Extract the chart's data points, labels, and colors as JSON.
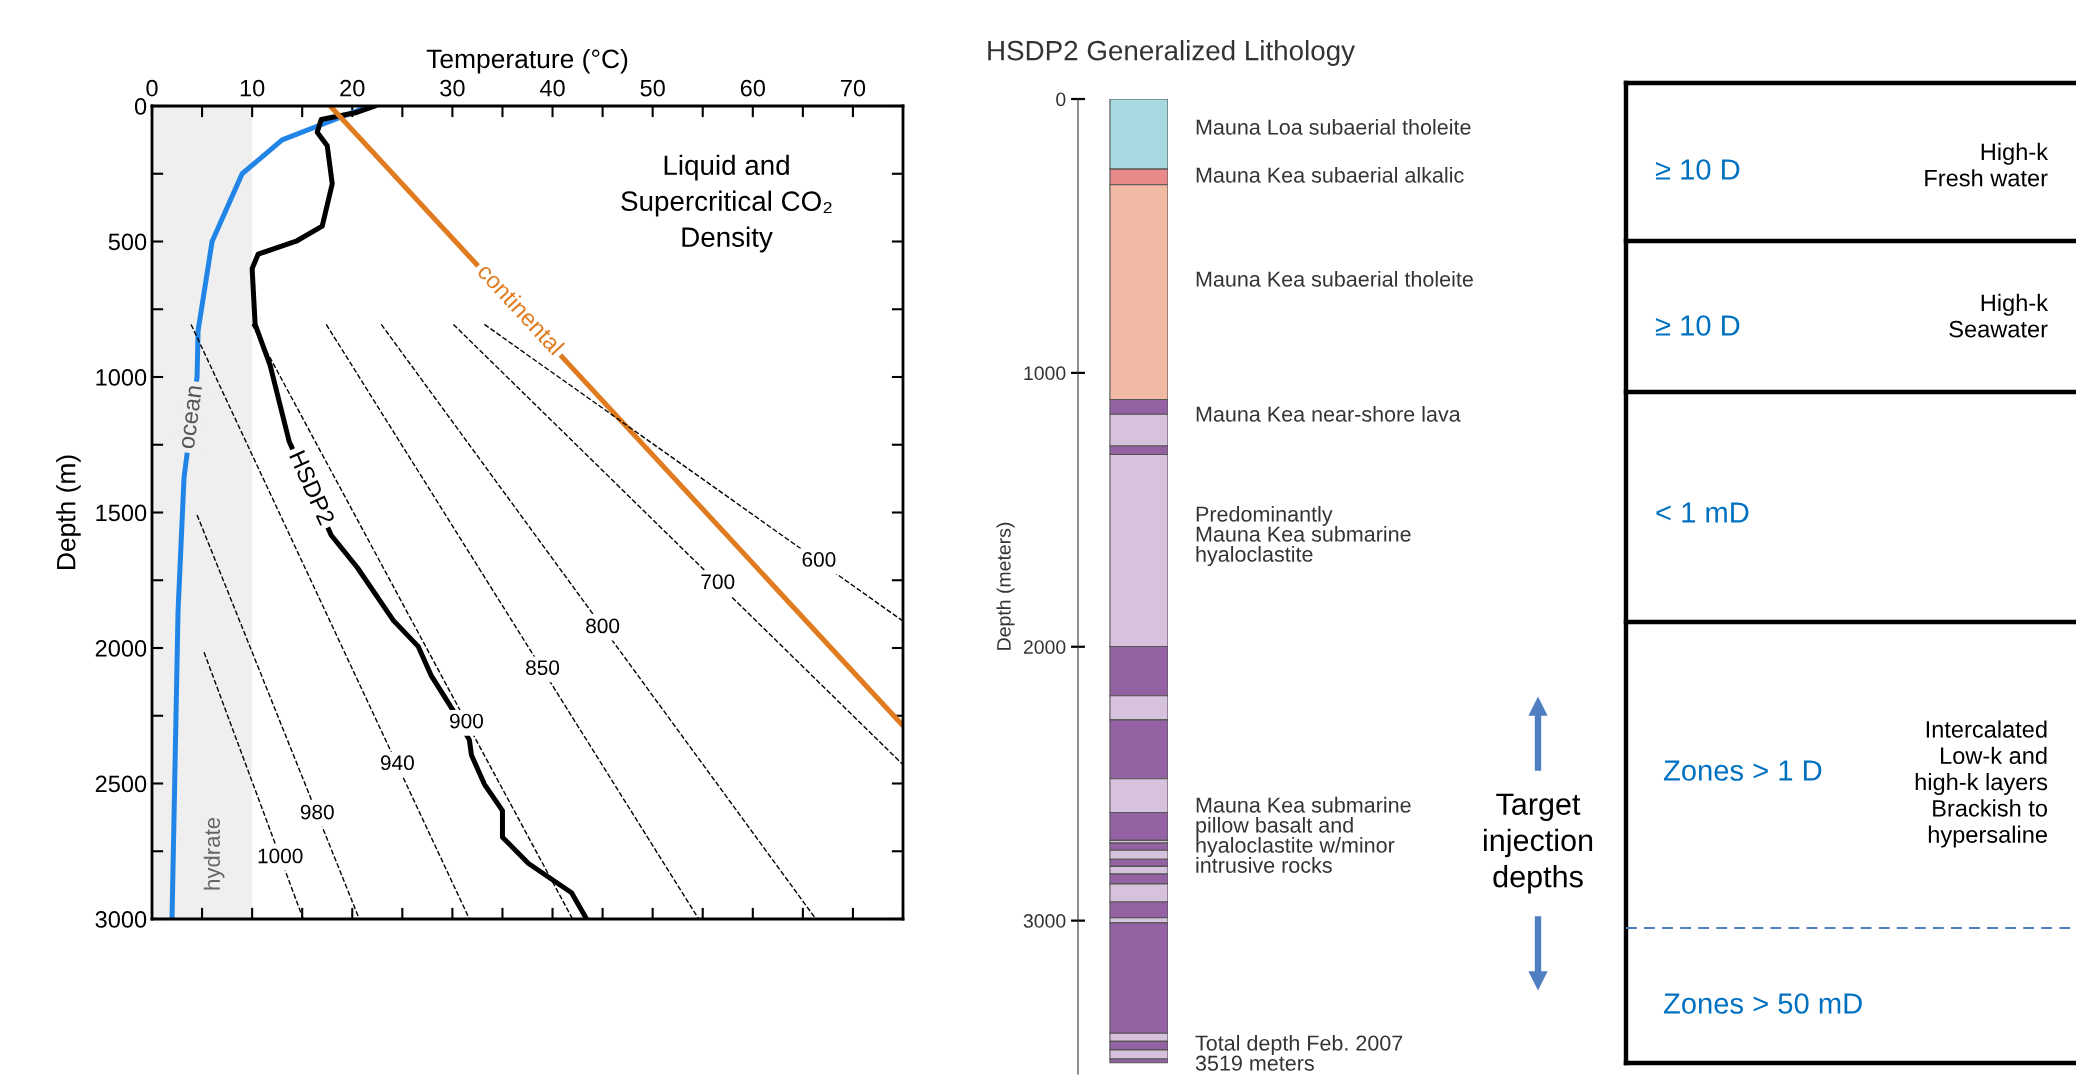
{
  "chart_data": [
    {
      "type": "line",
      "title": "Liquid and\nSupercritical CO₂\nDensity",
      "xlabel": "Temperature (°C)",
      "ylabel": "Depth (m)",
      "xlim": [
        0,
        75
      ],
      "ylim": [
        3000,
        0
      ],
      "xticks": [
        0,
        {
          "value": 5,
          "label": null
        },
        10,
        {
          "value": 15,
          "label": null
        },
        20,
        {
          "value": 25,
          "label": null
        },
        30,
        {
          "value": 35,
          "label": null
        },
        40,
        {
          "value": 45,
          "label": null
        },
        50,
        {
          "value": 55,
          "label": null
        },
        60,
        {
          "value": 65,
          "label": null
        },
        70,
        {
          "value": 75,
          "label": null
        }
      ],
      "yticks": [
        0,
        {
          "value": 250,
          "label": null
        },
        500,
        {
          "value": 750,
          "label": null
        },
        1000,
        {
          "value": 1250,
          "label": null
        },
        1500,
        {
          "value": 1750,
          "label": null
        },
        2000,
        {
          "value": 2250,
          "label": null
        },
        2500,
        {
          "value": 2750,
          "label": null
        },
        3000
      ],
      "bands": [
        {
          "axis": "x",
          "from": 0,
          "to": 10,
          "label": "hydrate",
          "color": "#efefef"
        }
      ],
      "series": [
        {
          "name": "ocean",
          "color": "#2185e8",
          "line_style": "solid",
          "x": [
            21,
            13,
            9,
            6,
            4.6,
            4.5,
            3.2,
            2.6,
            2
          ],
          "values": [
            10,
            125,
            250,
            500,
            830,
            1000,
            1370,
            1865,
            3000
          ]
        },
        {
          "name": "HSDP2",
          "color": "#000000",
          "line_style": "solid",
          "x": [
            22.3,
            20.3,
            16.9,
            16.5,
            17.5,
            18,
            17,
            14.4,
            10.6,
            10,
            10.3,
            11.8,
            13.7,
            17.9,
            20.5,
            24.1,
            26.6,
            27.9,
            30.1,
            31.7,
            31.9,
            33.2,
            35,
            35,
            37.6,
            41.9,
            43.4
          ],
          "values": [
            0,
            25,
            50,
            97,
            147,
            287,
            443,
            499,
            547,
            600,
            806,
            957,
            1238,
            1584,
            1703,
            1898,
            1995,
            2103,
            2232,
            2340,
            2395,
            2503,
            2600,
            2698,
            2795,
            2903,
            3000
          ]
        },
        {
          "name": "continental",
          "color": "#e07b1f",
          "line_style": "solid",
          "x": [
            17.8,
            75
          ],
          "values": [
            0,
            2287
          ]
        },
        {
          "color": "#000000",
          "line_style": "dashed",
          "x": [
            33.2,
            74.9
          ],
          "values": [
            806,
            1898
          ]
        },
        {
          "color": "#000000",
          "line_style": "dashed",
          "x": [
            30.1,
            74.9
          ],
          "values": [
            806,
            2427
          ]
        },
        {
          "color": "#000000",
          "line_style": "dashed",
          "x": [
            22.9,
            66.3
          ],
          "values": [
            806,
            3000
          ]
        },
        {
          "color": "#000000",
          "line_style": "dashed",
          "x": [
            17.4,
            54.6
          ],
          "values": [
            806,
            3000
          ]
        },
        {
          "color": "#000000",
          "line_style": "dashed",
          "x": [
            10,
            42
          ],
          "values": [
            806,
            3000
          ]
        },
        {
          "color": "#000000",
          "line_style": "dashed",
          "x": [
            3.9,
            31.7
          ],
          "values": [
            806,
            3000
          ]
        },
        {
          "color": "#000000",
          "line_style": "dashed",
          "x": [
            4.5,
            20.7
          ],
          "values": [
            1509,
            3000
          ]
        },
        {
          "color": "#000000",
          "line_style": "dashed",
          "x": [
            5.2,
            15.1
          ],
          "values": [
            2016,
            3000
          ]
        }
      ],
      "annotations": [
        {
          "text": "600",
          "x": 66.6,
          "y": 1680
        },
        {
          "text": "700",
          "x": 56.5,
          "y": 1762
        },
        {
          "text": "800",
          "x": 45,
          "y": 1925
        },
        {
          "text": "850",
          "x": 39,
          "y": 2079
        },
        {
          "text": "900",
          "x": 31.4,
          "y": 2276
        },
        {
          "text": "940",
          "x": 24.5,
          "y": 2430
        },
        {
          "text": "980",
          "x": 16.5,
          "y": 2612
        },
        {
          "text": "1000",
          "x": 12.8,
          "y": 2774
        }
      ]
    },
    {
      "type": "bar",
      "stacked": true,
      "title": "HSDP2 Generalized Lithology",
      "ylabel": "Depth (meters)",
      "categories": [
        null
      ],
      "tick_labels": "y",
      "ylim": [
        3560,
        0
      ],
      "yticks": [
        0,
        1000,
        2000,
        3000
      ],
      "series": [
        {
          "color": "#a8d8e0",
          "values": [
            256
          ]
        },
        {
          "color": "#e8898a",
          "values": [
            57
          ]
        },
        {
          "color": "#f2b9a4",
          "values": [
            784
          ]
        },
        {
          "color": "#9461a3",
          "values": [
            54
          ]
        },
        {
          "color": "#d7c2dd",
          "values": [
            116
          ]
        },
        {
          "color": "#9461a3",
          "values": [
            31
          ]
        },
        {
          "color": "#d7c2dd",
          "values": [
            701
          ]
        },
        {
          "color": "#9461a3",
          "values": [
            180
          ]
        },
        {
          "color": "#d7c2dd",
          "values": [
            88
          ]
        },
        {
          "color": "#9461a3",
          "values": [
            215
          ]
        },
        {
          "color": "#d7c2dd",
          "values": [
            123
          ]
        },
        {
          "color": "#9461a3",
          "values": [
            102
          ]
        },
        {
          "color": "#d7c2dd",
          "values": [
            10
          ]
        },
        {
          "color": "#9461a3",
          "values": [
            26
          ]
        },
        {
          "color": "#d7c2dd",
          "values": [
            33
          ]
        },
        {
          "color": "#9461a3",
          "values": [
            26
          ]
        },
        {
          "color": "#d7c2dd",
          "values": [
            28
          ]
        },
        {
          "color": "#9461a3",
          "values": [
            36
          ]
        },
        {
          "color": "#d7c2dd",
          "values": [
            66
          ]
        },
        {
          "color": "#9461a3",
          "values": [
            57
          ]
        },
        {
          "color": "#d7c2dd",
          "values": [
            19
          ]
        },
        {
          "color": "#9461a3",
          "values": [
            403
          ]
        },
        {
          "color": "#d7c2dd",
          "values": [
            30
          ]
        },
        {
          "color": "#9461a3",
          "values": [
            31
          ]
        },
        {
          "color": "#d7c2dd",
          "values": [
            33
          ]
        },
        {
          "color": "#9461a3",
          "values": [
            14
          ]
        }
      ],
      "annotations": [
        "Mauna Loa subaerial tholeite",
        "Mauna Kea subaerial alkalic",
        "Mauna Kea subaerial tholeite",
        "Mauna Kea near-shore lava",
        "Predominantly\nMauna Kea submarine\nhyaloclastite",
        "Mauna Kea submarine\npillow basalt and\nhyaloclastite w/minor\nintrusive rocks",
        "Total depth Feb. 2007\n3519 meters",
        "Target\ninjection\ndepths"
      ]
    },
    {
      "type": "other",
      "annotations": [
        "≥ 10 D",
        "High-k\nFresh water",
        "≥ 10 D",
        "High-k\nSeawater",
        "< 1 mD",
        "Zones > 1 D",
        "Intercalated\nLow-k and\nhigh-k layers\nBrackish to\nhypersaline",
        "Zones > 50 mD"
      ]
    }
  ]
}
